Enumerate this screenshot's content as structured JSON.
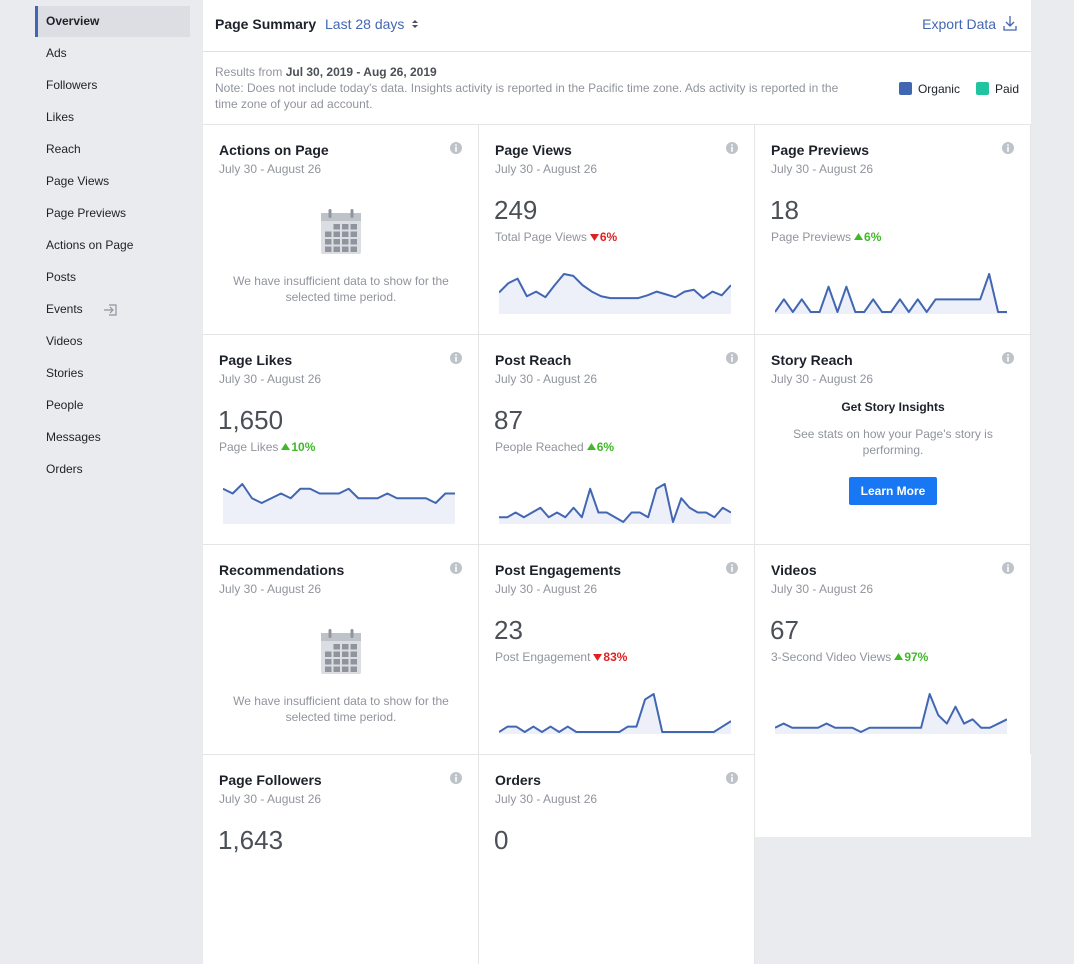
{
  "sidebar": [
    "Overview",
    "Ads",
    "Followers",
    "Likes",
    "Reach",
    "Page Views",
    "Page Previews",
    "Actions on Page",
    "Posts",
    "Events",
    "Videos",
    "Stories",
    "People",
    "Messages",
    "Orders"
  ],
  "header": {
    "title": "Page Summary",
    "range": "Last 28 days",
    "export": "Export Data"
  },
  "info": {
    "prefix": "Results from",
    "dates": "Jul 30, 2019 - Aug 26, 2019",
    "note": "Note: Does not include today's data. Insights activity is reported in the Pacific time zone. Ads activity is reported in the time zone of your ad account."
  },
  "legend": [
    {
      "name": "Organic",
      "color": "#4267b2"
    },
    {
      "name": "Paid",
      "color": "#20c5a0"
    }
  ],
  "cards": [
    {
      "title": "Actions on Page",
      "date": "July 30 - August 26",
      "message": "We have insufficient data to show for the selected time period."
    },
    {
      "title": "Page Views",
      "date": "July 30 - August 26",
      "value": "249",
      "label": "Total Page Views",
      "change": {
        "direction": "down",
        "text": "6%"
      },
      "trend": [
        21,
        31,
        36,
        17,
        22,
        16,
        29,
        41,
        39,
        29,
        22,
        17,
        15,
        15,
        15,
        15,
        18,
        22,
        19,
        16,
        22,
        24,
        15,
        22,
        18,
        29
      ]
    },
    {
      "title": "Page Previews",
      "date": "July 30 - August 26",
      "value": "18",
      "label": "Page Previews",
      "change": {
        "direction": "up",
        "text": "6%"
      },
      "trend": [
        0,
        1,
        0,
        1,
        0,
        0,
        2,
        0,
        2,
        0,
        0,
        1,
        0,
        0,
        1,
        0,
        1,
        0,
        1,
        1,
        1,
        1,
        1,
        1,
        3,
        0,
        0
      ]
    },
    {
      "title": "Page Likes",
      "date": "July 30 - August 26",
      "value": "1,650",
      "label": "Page Likes",
      "change": {
        "direction": "up",
        "text": "10%"
      },
      "trend": [
        7,
        6,
        8,
        5,
        4,
        5,
        6,
        5,
        7,
        7,
        6,
        6,
        6,
        7,
        5,
        5,
        5,
        6,
        5,
        5,
        5,
        5,
        4,
        6,
        6
      ]
    },
    {
      "title": "Post Reach",
      "date": "July 30 - August 26",
      "value": "87",
      "label": "People Reached",
      "change": {
        "direction": "up",
        "text": "6%"
      },
      "trend": [
        1,
        1,
        2,
        1,
        2,
        3,
        1,
        2,
        1,
        3,
        1,
        7,
        2,
        2,
        1,
        0,
        2,
        2,
        1,
        7,
        8,
        0,
        5,
        3,
        2,
        2,
        1,
        3,
        2
      ]
    },
    {
      "title": "Story Reach",
      "date": "July 30 - August 26",
      "heading": "Get Story Insights",
      "message": "See stats on how your Page's story is performing.",
      "button": "Learn More"
    },
    {
      "title": "Recommendations",
      "date": "July 30 - August 26",
      "message": "We have insufficient data to show for the selected time period."
    },
    {
      "title": "Post Engagements",
      "date": "July 30 - August 26",
      "value": "23",
      "label": "Post Engagement",
      "change": {
        "direction": "down",
        "text": "83%"
      },
      "trend": [
        0,
        1,
        1,
        0,
        1,
        0,
        1,
        0,
        1,
        0,
        0,
        0,
        0,
        0,
        0,
        1,
        1,
        6,
        7,
        0,
        0,
        0,
        0,
        0,
        0,
        0,
        1,
        2
      ]
    },
    {
      "title": "Videos",
      "date": "July 30 - August 26",
      "value": "67",
      "label": "3-Second Video Views",
      "change": {
        "direction": "up",
        "text": "97%"
      },
      "trend": [
        1,
        2,
        1,
        1,
        1,
        1,
        2,
        1,
        1,
        1,
        0,
        1,
        1,
        1,
        1,
        1,
        1,
        1,
        9,
        4,
        2,
        6,
        2,
        3,
        1,
        1,
        2,
        3
      ]
    },
    {
      "title": "Page Followers",
      "date": "July 30 - August 26",
      "value": "1,643"
    },
    {
      "title": "Orders",
      "date": "July 30 - August 26",
      "value": "0"
    }
  ]
}
